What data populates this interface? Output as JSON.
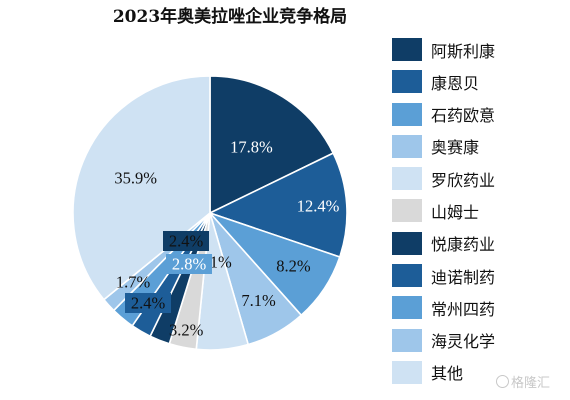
{
  "chart_data": {
    "type": "pie",
    "title": "2023年奥美拉唑企业竞争格局",
    "slices": [
      {
        "label": "阿斯利康",
        "value": 17.8,
        "display": "17.8%",
        "color": "#0f3d66"
      },
      {
        "label": "康恩贝",
        "value": 12.4,
        "display": "12.4%",
        "color": "#1d5d98"
      },
      {
        "label": "石药欧意",
        "value": 8.2,
        "display": "8.2%",
        "color": "#5b9fd6"
      },
      {
        "label": "奥赛康",
        "value": 7.1,
        "display": "7.1%",
        "color": "#9ec6ea"
      },
      {
        "label": "罗欣药业",
        "value": 6.1,
        "display": "6.1%",
        "color": "#cfe2f3"
      },
      {
        "label": "山姆士",
        "value": 3.2,
        "display": "3.2%",
        "color": "#d9d9d9"
      },
      {
        "label": "悦康药业",
        "value": 2.4,
        "display": "2.4%",
        "color": "#0f3d66"
      },
      {
        "label": "迪诺制药",
        "value": 2.4,
        "display": "2.4%",
        "color": "#1d5d98"
      },
      {
        "label": "常州四药",
        "value": 2.8,
        "display": "2.8%",
        "color": "#5b9fd6"
      },
      {
        "label": "海灵化学",
        "value": 1.7,
        "display": "1.7%",
        "color": "#9ec6ea"
      },
      {
        "label": "其他",
        "value": 35.9,
        "display": "35.9%",
        "color": "#cfe2f3"
      }
    ],
    "legend": {
      "placement": "right",
      "entries": [
        "阿斯利康",
        "康恩贝",
        "石药欧意",
        "奥赛康",
        "罗欣药业",
        "山姆士",
        "悦康药业",
        "迪诺制药",
        "常州四药",
        "海灵化学",
        "其他"
      ]
    }
  },
  "watermark": {
    "text": "格隆汇",
    "icon": "gelonghui-logo-icon"
  }
}
